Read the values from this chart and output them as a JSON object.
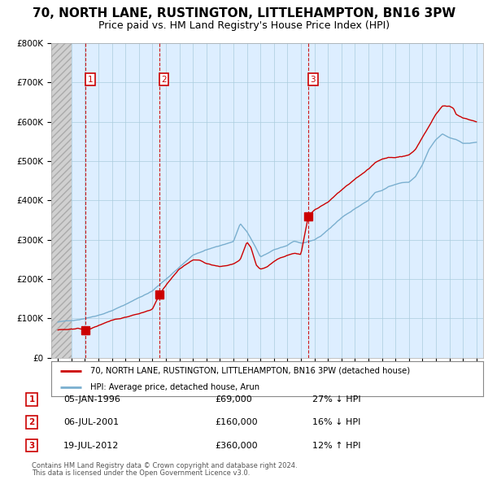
{
  "title": "70, NORTH LANE, RUSTINGTON, LITTLEHAMPTON, BN16 3PW",
  "subtitle": "Price paid vs. HM Land Registry's House Price Index (HPI)",
  "legend_line1": "70, NORTH LANE, RUSTINGTON, LITTLEHAMPTON, BN16 3PW (detached house)",
  "legend_line2": "HPI: Average price, detached house, Arun",
  "footer1": "Contains HM Land Registry data © Crown copyright and database right 2024.",
  "footer2": "This data is licensed under the Open Government Licence v3.0.",
  "sales": [
    {
      "num": 1,
      "date": "05-JAN-1996",
      "price": 69000,
      "pct": "27%",
      "dir": "↓",
      "year": 1996.04
    },
    {
      "num": 2,
      "date": "06-JUL-2001",
      "price": 160000,
      "pct": "16%",
      "dir": "↓",
      "year": 2001.5
    },
    {
      "num": 3,
      "date": "19-JUL-2012",
      "price": 360000,
      "pct": "12%",
      "dir": "↑",
      "year": 2012.54
    }
  ],
  "property_color": "#cc0000",
  "hpi_color": "#7aafcf",
  "chart_bg_color": "#ddeeff",
  "background_color": "#ffffff",
  "grid_color": "#aaccdd",
  "xmin": 1993.5,
  "xmax": 2025.5,
  "ymin": 0,
  "ymax": 800000,
  "hatch_xend": 1995.0,
  "title_fontsize": 11,
  "subtitle_fontsize": 9,
  "tick_fontsize": 7.5
}
